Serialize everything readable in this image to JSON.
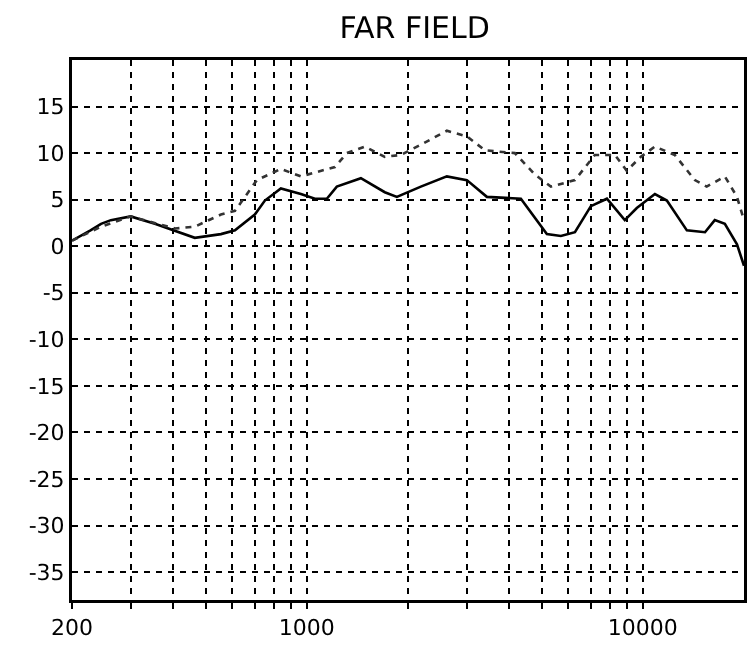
{
  "chart_data": {
    "type": "line",
    "title": "FAR FIELD",
    "log": "x",
    "grid": true,
    "marker": "none",
    "xlim": [
      200,
      20000
    ],
    "ylim": [
      -38,
      20
    ],
    "xticks": [
      200,
      {
        "value": 300,
        "label": null
      },
      {
        "value": 400,
        "label": null
      },
      {
        "value": 500,
        "label": null
      },
      {
        "value": 600,
        "label": null
      },
      {
        "value": 700,
        "label": null
      },
      {
        "value": 800,
        "label": null
      },
      {
        "value": 900,
        "label": null
      },
      1000,
      {
        "value": 2000,
        "label": null
      },
      {
        "value": 3000,
        "label": null
      },
      {
        "value": 4000,
        "label": null
      },
      {
        "value": 5000,
        "label": null
      },
      {
        "value": 6000,
        "label": null
      },
      {
        "value": 7000,
        "label": null
      },
      {
        "value": 8000,
        "label": null
      },
      {
        "value": 9000,
        "label": null
      },
      10000
    ],
    "yticks": [
      15,
      10,
      5,
      0,
      -5,
      -10,
      -15,
      -20,
      -25,
      -30,
      -35
    ],
    "series": [
      {
        "color": "#000000",
        "line_style": "solid",
        "x": [
          200,
          227,
          244,
          261,
          299,
          353,
          464,
          555,
          611,
          700,
          750,
          837,
          960,
          1057,
          1147,
          1228,
          1448,
          1706,
          1853,
          2184,
          2610,
          2994,
          3434,
          4335,
          5180,
          5702,
          6279,
          7003,
          7816,
          8836,
          9594,
          10860,
          11790,
          13520,
          15310,
          16370,
          17540,
          19060,
          20000
        ],
        "values": [
          0.6,
          1.7,
          2.4,
          2.8,
          3.2,
          2.4,
          0.9,
          1.3,
          1.7,
          3.4,
          4.9,
          6.2,
          5.6,
          5.1,
          5.1,
          6.4,
          7.3,
          5.8,
          5.3,
          6.4,
          7.5,
          7.1,
          5.3,
          5.1,
          1.3,
          1.1,
          1.5,
          4.3,
          5.1,
          2.8,
          4.1,
          5.6,
          4.9,
          1.7,
          1.5,
          2.8,
          2.4,
          0.2,
          -2.1
        ]
      },
      {
        "color": "#333333",
        "line_style": "dotted",
        "x": [
          200,
          244,
          299,
          405,
          464,
          555,
          611,
          710,
          837,
          960,
          1212,
          1315,
          1489,
          1706,
          1905,
          2184,
          2610,
          2994,
          3388,
          4159,
          4771,
          5324,
          6279,
          7197,
          8260,
          8954,
          9862,
          10860,
          12450,
          14280,
          15490,
          17540,
          19060,
          20000
        ],
        "values": [
          0.6,
          2.1,
          3.2,
          1.9,
          2.1,
          3.4,
          3.8,
          7.1,
          8.3,
          7.5,
          8.5,
          10,
          10.7,
          9.6,
          9.8,
          10.9,
          12.4,
          11.8,
          10.3,
          10,
          7.7,
          6.4,
          7.1,
          9.8,
          9.8,
          8.1,
          9.6,
          10.7,
          9.8,
          7.1,
          6.4,
          7.5,
          5.3,
          2.8
        ]
      }
    ]
  }
}
